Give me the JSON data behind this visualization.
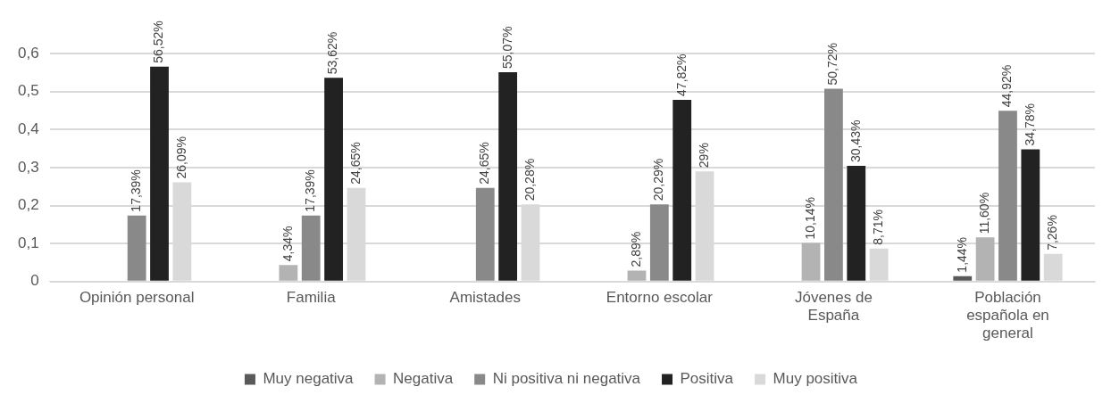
{
  "chart_data": {
    "type": "bar",
    "categories": [
      "Opinión personal",
      "Familia",
      "Amistades",
      "Entorno escolar",
      "Jóvenes de España",
      "Población española en general"
    ],
    "series": [
      {
        "name": "Muy negativa",
        "color": "#595959",
        "values": [
          0,
          0,
          0,
          0,
          0,
          0.0144
        ],
        "value_labels": [
          null,
          null,
          null,
          null,
          null,
          "1,44%"
        ]
      },
      {
        "name": "Negativa",
        "color": "#b3b3b3",
        "values": [
          0,
          0.0434,
          0,
          0.0289,
          0.1014,
          0.116
        ],
        "value_labels": [
          null,
          "4,34%",
          null,
          "2,89%",
          "10,14%",
          "11,60%"
        ]
      },
      {
        "name": "Ni positiva ni negativa",
        "color": "#898989",
        "values": [
          0.1739,
          0.1739,
          0.2465,
          0.2029,
          0.5072,
          0.4492
        ],
        "value_labels": [
          "17,39%",
          "17,39%",
          "24,65%",
          "20,29%",
          "50,72%",
          "44,92%"
        ]
      },
      {
        "name": "Positiva",
        "color": "#222222",
        "values": [
          0.5652,
          0.5362,
          0.5507,
          0.4782,
          0.3043,
          0.3478
        ],
        "value_labels": [
          "56,52%",
          "53,62%",
          "55,07%",
          "47,82%",
          "30,43%",
          "34,78%"
        ]
      },
      {
        "name": "Muy positiva",
        "color": "#d9d9d9",
        "values": [
          0.2609,
          0.2465,
          0.2028,
          0.29,
          0.0871,
          0.0726
        ],
        "value_labels": [
          "26,09%",
          "24,65%",
          "20,28%",
          "29%",
          "8,71%",
          "7,26%"
        ]
      }
    ],
    "ylim": [
      0,
      0.6
    ],
    "yticks": [
      {
        "value": 0,
        "label": "0"
      },
      {
        "value": 0.1,
        "label": "0,1"
      },
      {
        "value": 0.2,
        "label": "0,2"
      },
      {
        "value": 0.3,
        "label": "0,3"
      },
      {
        "value": 0.4,
        "label": "0,4"
      },
      {
        "value": 0.5,
        "label": "0,5"
      },
      {
        "value": 0.6,
        "label": "0,6"
      }
    ],
    "grid": "y",
    "legend": "bottom"
  }
}
